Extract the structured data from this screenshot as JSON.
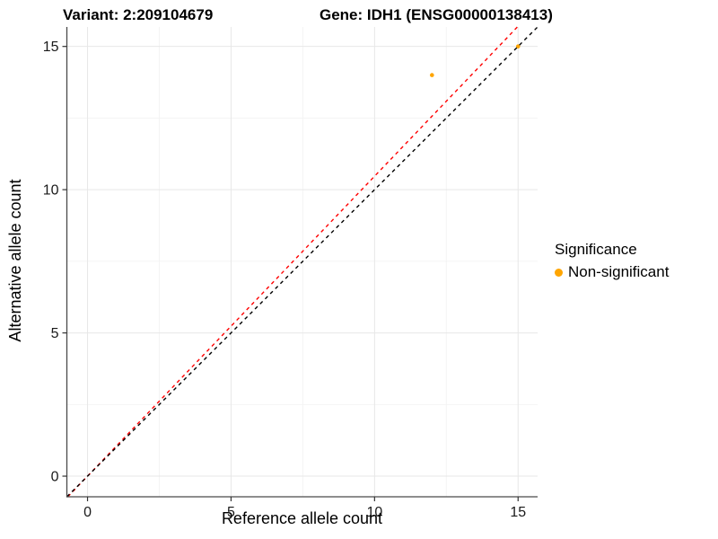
{
  "header": {
    "variant_title": "Variant: 2:209104679",
    "gene_title": "Gene: IDH1 (ENSG00000138413)"
  },
  "axes": {
    "x_label": "Reference allele count",
    "y_label": "Alternative allele count"
  },
  "legend": {
    "title": "Significance",
    "items": [
      {
        "label": "Non-significant",
        "color": "#FFA500",
        "marker": "dot"
      }
    ]
  },
  "colors": {
    "point": "#FFA500",
    "identity_line": "#000000",
    "fit_line": "#FF0000",
    "grid_major": "#E7E7E7",
    "grid_minor": "#F3F3F3",
    "axis_line": "#4A4A4A",
    "tick": "#333333",
    "tick_label": "#1A1A1A"
  },
  "chart_data": {
    "type": "scatter",
    "title": "Variant: 2:209104679 | Gene: IDH1 (ENSG00000138413)",
    "xlabel": "Reference allele count",
    "ylabel": "Alternative allele count",
    "xlim": [
      -0.72,
      15.68
    ],
    "ylim": [
      -0.72,
      15.68
    ],
    "x_ticks": [
      0,
      5,
      10,
      15
    ],
    "y_ticks": [
      0,
      5,
      10,
      15
    ],
    "x_minor_ticks": [
      2.5,
      7.5,
      12.5
    ],
    "y_minor_ticks": [
      2.5,
      7.5,
      12.5
    ],
    "grid": true,
    "legend_position": "right",
    "series": [
      {
        "name": "Non-significant",
        "color": "#FFA500",
        "points": [
          {
            "x": 12,
            "y": 14
          },
          {
            "x": 15,
            "y": 15
          }
        ]
      }
    ],
    "lines": [
      {
        "name": "fit",
        "slope": 1.047,
        "intercept": 0,
        "color": "#FF0000",
        "style": "dashed"
      },
      {
        "name": "identity",
        "slope": 1.0,
        "intercept": 0,
        "color": "#000000",
        "style": "dashed"
      }
    ]
  }
}
